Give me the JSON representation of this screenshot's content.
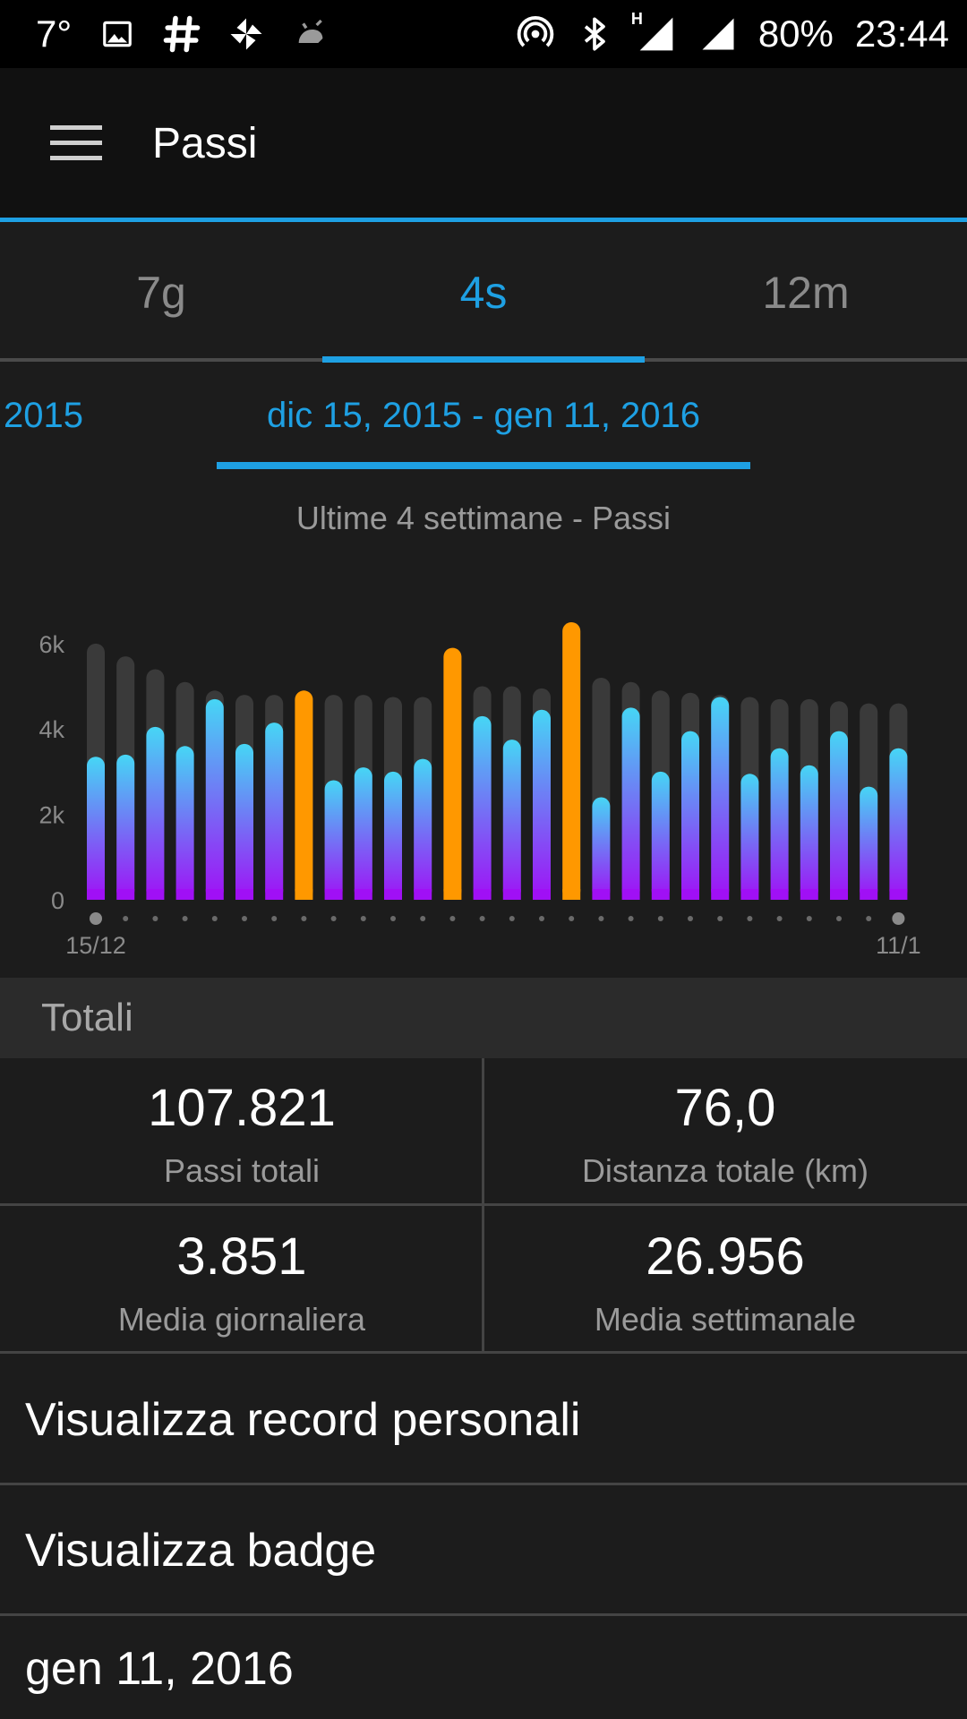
{
  "status_bar": {
    "temperature": "7°",
    "battery": "80%",
    "time": "23:44",
    "network_label": "H",
    "icons_left": [
      "image-icon",
      "hashtag-icon",
      "pinwheel-icon",
      "android-debug-icon"
    ],
    "icons_right": [
      "hotspot-icon",
      "bluetooth-icon",
      "signal-icon",
      "signal-icon"
    ]
  },
  "app_bar": {
    "title": "Passi"
  },
  "tabs": [
    {
      "label": "7g",
      "active": false
    },
    {
      "label": "4s",
      "active": true
    },
    {
      "label": "12m",
      "active": false
    }
  ],
  "date_nav": {
    "previous": "2015",
    "current": "dic 15, 2015 - gen 11, 2016"
  },
  "chart_title": "Ultime 4 settimane - Passi",
  "colors": {
    "accent": "#1ea0e3",
    "goal_bar": "#3a3a3a",
    "bar_top": "#46d6f5",
    "bar_bottom": "#a010f5",
    "goal_reached": "#ff9800"
  },
  "chart_data": {
    "type": "bar",
    "xlabel": "",
    "ylabel": "",
    "ylim": [
      0,
      6500
    ],
    "y_ticks": [
      "0",
      "2k",
      "4k",
      "6k"
    ],
    "x_tick_labels": [
      "15/12",
      "11/1"
    ],
    "grid": false,
    "legend": "none",
    "categories": [
      "15/12",
      "16/12",
      "17/12",
      "18/12",
      "19/12",
      "20/12",
      "21/12",
      "22/12",
      "23/12",
      "24/12",
      "25/12",
      "26/12",
      "27/12",
      "28/12",
      "29/12",
      "30/12",
      "31/12",
      "1/1",
      "2/1",
      "3/1",
      "4/1",
      "5/1",
      "6/1",
      "7/1",
      "8/1",
      "9/1",
      "10/1",
      "11/1"
    ],
    "series": [
      {
        "values": [
          6000,
          5700,
          5400,
          5100,
          4900,
          4800,
          4800,
          4900,
          4800,
          4800,
          4750,
          4750,
          5900,
          5000,
          5000,
          4950,
          6500,
          5200,
          5100,
          4900,
          4850,
          4800,
          4750,
          4700,
          4700,
          4650,
          4600,
          4600
        ]
      },
      {
        "values": [
          3350,
          3400,
          4050,
          3600,
          4700,
          3650,
          4150,
          4900,
          2800,
          3100,
          3000,
          3300,
          5900,
          4300,
          3750,
          4450,
          6500,
          2400,
          4500,
          3000,
          3950,
          4750,
          2950,
          3550,
          3150,
          3950,
          2650,
          3550
        ]
      }
    ],
    "goal_reached": [
      false,
      false,
      false,
      false,
      false,
      false,
      false,
      true,
      false,
      false,
      false,
      false,
      true,
      false,
      false,
      false,
      true,
      false,
      false,
      false,
      false,
      false,
      false,
      false,
      false,
      false,
      false,
      false
    ]
  },
  "totals": {
    "header": "Totali",
    "items": [
      {
        "value": "107.821",
        "label": "Passi totali"
      },
      {
        "value": "76,0",
        "label": "Distanza totale (km)"
      },
      {
        "value": "3.851",
        "label": "Media giornaliera"
      },
      {
        "value": "26.956",
        "label": "Media settimanale"
      }
    ]
  },
  "list": [
    {
      "label": "Visualizza record personali"
    },
    {
      "label": "Visualizza badge"
    },
    {
      "label": "gen 11, 2016"
    }
  ]
}
